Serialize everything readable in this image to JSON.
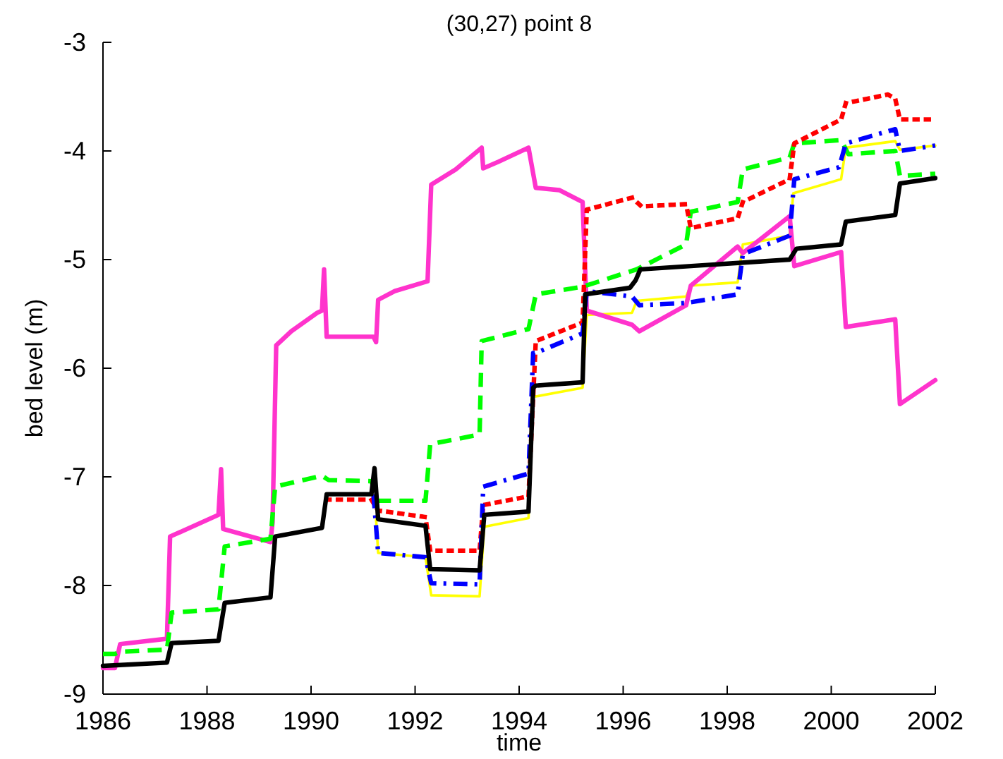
{
  "chart_data": {
    "type": "line",
    "title": "(30,27) point 8",
    "xlabel": "time",
    "ylabel": "bed level  (m)",
    "xlim": [
      1986,
      2002
    ],
    "xticks": [
      1986,
      1988,
      1990,
      1992,
      1994,
      1996,
      1998,
      2000,
      2002
    ],
    "ylim": [
      -9,
      -3
    ],
    "yticks": [
      -9,
      -8,
      -7,
      -6,
      -5,
      -4,
      -3
    ],
    "grid": false,
    "series": [
      {
        "color": "#ffff00",
        "line_style": "solid",
        "x": [
          1991.25,
          1991.29,
          1992.2,
          1992.31,
          1993.24,
          1993.33,
          1994.18,
          1994.27,
          1994.32,
          1995.22,
          1995.3,
          1996.17,
          1996.26,
          1997.21,
          1997.3,
          1998.2,
          1998.3,
          1999.2,
          1999.27,
          2000.19,
          2000.28,
          2001.23,
          2001.32,
          2002
        ],
        "values": [
          -7.39,
          -7.7,
          -7.74,
          -8.09,
          -8.1,
          -7.46,
          -7.38,
          -6.25,
          -6.26,
          -6.18,
          -5.51,
          -5.49,
          -5.38,
          -5.34,
          -5.24,
          -5.21,
          -4.86,
          -4.78,
          -4.39,
          -4.26,
          -3.97,
          -3.91,
          -3.99,
          -3.95
        ]
      },
      {
        "color": "#ff33cc",
        "line_style": "solid",
        "x": [
          1986,
          1986.23,
          1986.33,
          1987.23,
          1987.29,
          1988.22,
          1988.27,
          1988.31,
          1989.22,
          1989.26,
          1989.33,
          1989.62,
          1990.12,
          1990.21,
          1990.25,
          1990.3,
          1991.2,
          1991.25,
          1991.29,
          1991.61,
          1992.24,
          1992.31,
          1992.78,
          1993.28,
          1993.31,
          1993.6,
          1994.18,
          1994.32,
          1994.77,
          1995.22,
          1995.3,
          1996.17,
          1996.31,
          1997.21,
          1997.3,
          1998.2,
          1998.3,
          1999.2,
          1999.29,
          2000.19,
          2000.28,
          2001.23,
          2001.32,
          2002
        ],
        "values": [
          -8.76,
          -8.76,
          -8.54,
          -8.49,
          -7.55,
          -7.35,
          -6.93,
          -7.48,
          -7.6,
          -7.42,
          -5.79,
          -5.66,
          -5.49,
          -5.47,
          -5.09,
          -5.71,
          -5.71,
          -5.76,
          -5.37,
          -5.29,
          -5.2,
          -4.31,
          -4.17,
          -3.97,
          -4.16,
          -4.1,
          -3.97,
          -4.34,
          -4.36,
          -4.47,
          -5.47,
          -5.6,
          -5.66,
          -5.42,
          -5.24,
          -4.88,
          -4.94,
          -4.6,
          -5.06,
          -4.93,
          -5.62,
          -5.55,
          -6.33,
          -6.11
        ]
      },
      {
        "color": "#00ff00",
        "line_style": "dashed",
        "x": [
          1986,
          1986.23,
          1986.33,
          1987.23,
          1987.32,
          1988.22,
          1988.34,
          1989.22,
          1989.31,
          1990.21,
          1990.34,
          1991.16,
          1991.29,
          1992.2,
          1992.29,
          1993.24,
          1993.28,
          1994.18,
          1994.32,
          1995.22,
          1996.26,
          1997.21,
          1997.3,
          1998.2,
          1998.3,
          1999.2,
          1999.29,
          2000.19,
          2000.33,
          2001.23,
          2001.32,
          2002
        ],
        "values": [
          -8.63,
          -8.63,
          -8.61,
          -8.59,
          -8.25,
          -8.22,
          -7.64,
          -7.57,
          -7.09,
          -6.99,
          -7.03,
          -7.04,
          -7.22,
          -7.22,
          -6.7,
          -6.61,
          -5.75,
          -5.64,
          -5.32,
          -5.25,
          -5.09,
          -4.86,
          -4.56,
          -4.47,
          -4.17,
          -4.06,
          -3.93,
          -3.9,
          -4.03,
          -4,
          -4.23,
          -4.21
        ]
      },
      {
        "color": "#ff0000",
        "line_style": "dotted",
        "x": [
          1990.3,
          1991.16,
          1991.29,
          1992.2,
          1992.29,
          1993.24,
          1993.31,
          1994.18,
          1994.32,
          1995.22,
          1995.3,
          1996.17,
          1996.35,
          1997.21,
          1997.3,
          1998.2,
          1998.3,
          1999.2,
          1999.29,
          2000.19,
          2000.28,
          2001.09,
          2001.23,
          2001.32,
          2002
        ],
        "values": [
          -7.21,
          -7.21,
          -7.31,
          -7.37,
          -7.68,
          -7.68,
          -7.26,
          -7.18,
          -5.75,
          -5.58,
          -4.54,
          -4.43,
          -4.51,
          -4.49,
          -4.71,
          -4.62,
          -4.47,
          -4.26,
          -3.93,
          -3.71,
          -3.56,
          -3.48,
          -3.52,
          -3.71,
          -3.71
        ]
      },
      {
        "color": "#0000ff",
        "line_style": "dashdot",
        "x": [
          1991.2,
          1991.29,
          1992.2,
          1992.31,
          1993.24,
          1993.31,
          1994.18,
          1994.27,
          1994.32,
          1995.22,
          1995.3,
          1996.17,
          1996.31,
          1997.21,
          1998.2,
          1998.3,
          1999.2,
          1999.29,
          2000.15,
          2000.28,
          2001.23,
          2001.32,
          2002
        ],
        "values": [
          -7.16,
          -7.7,
          -7.74,
          -7.98,
          -7.99,
          -7.09,
          -6.97,
          -5.86,
          -5.86,
          -5.68,
          -5.29,
          -5.34,
          -5.42,
          -5.4,
          -5.32,
          -4.95,
          -4.78,
          -4.26,
          -4.15,
          -3.93,
          -3.8,
          -4,
          -3.95
        ]
      },
      {
        "color": "#000000",
        "line_style": "solid",
        "x": [
          1986,
          1987.23,
          1987.32,
          1988.22,
          1988.34,
          1989.22,
          1989.31,
          1990.21,
          1990.3,
          1991.16,
          1991.22,
          1991.29,
          1992.2,
          1992.29,
          1993.24,
          1993.33,
          1994.18,
          1994.27,
          1994.32,
          1995.22,
          1995.27,
          1996.13,
          1996.24,
          1996.33,
          1999.2,
          1999.33,
          2000.19,
          2000.28,
          2001.23,
          2001.32,
          2002
        ],
        "values": [
          -8.74,
          -8.71,
          -8.53,
          -8.51,
          -8.16,
          -8.11,
          -7.55,
          -7.47,
          -7.16,
          -7.16,
          -6.92,
          -7.39,
          -7.45,
          -7.85,
          -7.86,
          -7.35,
          -7.32,
          -6.18,
          -6.16,
          -6.13,
          -5.32,
          -5.26,
          -5.19,
          -5.09,
          -5,
          -4.9,
          -4.86,
          -4.65,
          -4.59,
          -4.3,
          -4.25
        ]
      }
    ]
  }
}
